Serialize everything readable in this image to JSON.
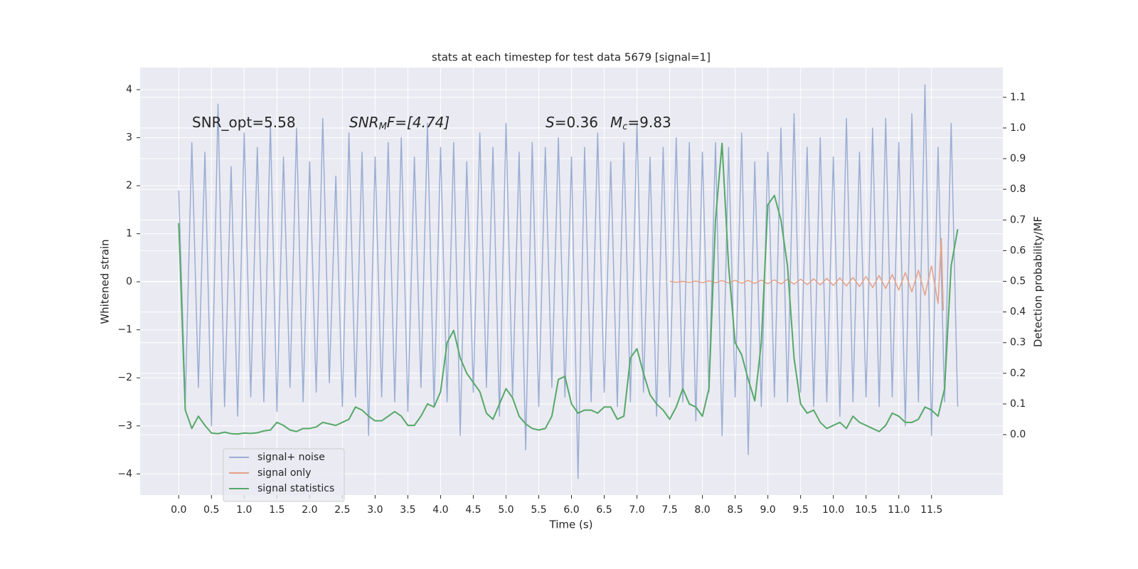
{
  "chart_data": {
    "type": "line",
    "title": "stats at each timestep for test data 5679 [signal=1]",
    "xlabel": "Time (s)",
    "ylabel": "Whitened strain",
    "y2label": "Detection probability/MF",
    "annotations": [
      [
        "SNR_opt=5.58"
      ],
      [
        "SNR",
        "M",
        "F=[4.74]"
      ],
      [
        "S",
        "=0.36"
      ],
      [
        "M",
        "c",
        "=9.83"
      ]
    ],
    "xlim": [
      -0.59,
      12.59
    ],
    "xticks": [
      {
        "value": 0,
        "label": "0.0"
      },
      0.5,
      {
        "value": 1,
        "label": "1.0"
      },
      1.5,
      {
        "value": 2,
        "label": "2.0"
      },
      2.5,
      {
        "value": 3,
        "label": "3.0"
      },
      3.5,
      {
        "value": 4,
        "label": "4.0"
      },
      4.5,
      {
        "value": 5,
        "label": "5.0"
      },
      5.5,
      {
        "value": 6,
        "label": "6.0"
      },
      6.5,
      {
        "value": 7,
        "label": "7.0"
      },
      7.5,
      {
        "value": 8,
        "label": "8.0"
      },
      8.5,
      {
        "value": 9,
        "label": "9.0"
      },
      9.5,
      {
        "value": 10,
        "label": "10.0"
      },
      10.5,
      {
        "value": 11,
        "label": "11.0"
      },
      11.5
    ],
    "ylim": [
      -4.44,
      4.46
    ],
    "yticks": [
      {
        "value": -4,
        "label": "−4"
      },
      {
        "value": -3,
        "label": "−3"
      },
      {
        "value": -2,
        "label": "−2"
      },
      {
        "value": -1,
        "label": "−1"
      },
      0,
      1,
      2,
      3,
      4
    ],
    "y2lim": [
      -0.197,
      1.197
    ],
    "y2ticks": [
      {
        "value": 0,
        "label": "0.0"
      },
      0.1,
      0.2,
      0.3,
      0.4,
      0.5,
      0.6,
      0.7,
      0.8,
      0.9,
      {
        "value": 1,
        "label": "1.0"
      },
      1.1
    ],
    "grid": true,
    "legend": "lower left",
    "x": [
      0.0,
      0.1,
      0.2,
      0.3,
      0.4,
      0.5,
      0.6,
      0.7,
      0.8,
      0.9,
      1.0,
      1.1,
      1.2,
      1.3,
      1.4,
      1.5,
      1.6,
      1.7,
      1.8,
      1.9,
      2.0,
      2.1,
      2.2,
      2.3,
      2.4,
      2.5,
      2.6,
      2.7,
      2.8,
      2.9,
      3.0,
      3.1,
      3.2,
      3.3,
      3.4,
      3.5,
      3.6,
      3.7,
      3.8,
      3.9,
      4.0,
      4.1,
      4.2,
      4.3,
      4.4,
      4.5,
      4.6,
      4.7,
      4.8,
      4.9,
      5.0,
      5.1,
      5.2,
      5.3,
      5.4,
      5.5,
      5.6,
      5.7,
      5.8,
      5.9,
      6.0,
      6.1,
      6.2,
      6.3,
      6.4,
      6.5,
      6.6,
      6.7,
      6.8,
      6.9,
      7.0,
      7.1,
      7.2,
      7.3,
      7.4,
      7.5,
      7.6,
      7.7,
      7.8,
      7.9,
      8.0,
      8.1,
      8.2,
      8.3,
      8.4,
      8.5,
      8.6,
      8.7,
      8.8,
      8.9,
      9.0,
      9.1,
      9.2,
      9.3,
      9.4,
      9.5,
      9.6,
      9.7,
      9.8,
      9.9,
      10.0,
      10.1,
      10.2,
      10.3,
      10.4,
      10.5,
      10.6,
      10.7,
      10.8,
      10.9,
      11.0,
      11.1,
      11.2,
      11.3,
      11.4,
      11.5,
      11.6,
      11.7,
      11.8,
      11.9
    ],
    "series": [
      {
        "name": "signal+ noise",
        "color": "#9aaed3",
        "values": [
          1.9,
          -2.5,
          2.9,
          -2.2,
          2.7,
          -3.0,
          3.7,
          -2.6,
          2.4,
          -2.8,
          3.1,
          -2.4,
          2.8,
          -2.5,
          3.3,
          -2.7,
          2.6,
          -2.2,
          3.2,
          -2.5,
          2.5,
          -2.3,
          3.4,
          -2.1,
          2.2,
          -2.6,
          3.1,
          -2.4,
          2.7,
          -3.2,
          2.6,
          -2.4,
          2.9,
          -2.5,
          3.0,
          -2.7,
          2.6,
          -2.2,
          3.3,
          -2.6,
          2.8,
          -2.5,
          2.9,
          -3.2,
          2.5,
          -2.3,
          3.1,
          -2.2,
          2.8,
          -2.8,
          3.3,
          -2.4,
          2.7,
          -3.5,
          2.9,
          -2.6,
          2.8,
          -2.2,
          3.0,
          -2.4,
          2.6,
          -4.1,
          2.8,
          -2.5,
          3.1,
          -2.3,
          2.5,
          -2.6,
          2.9,
          -2.5,
          3.3,
          -2.3,
          2.6,
          -2.8,
          2.8,
          -2.4,
          3.0,
          -2.5,
          2.9,
          -2.9,
          2.7,
          -2.3,
          2.9,
          -3.2,
          2.8,
          -2.4,
          3.1,
          -3.6,
          2.5,
          -2.6,
          2.7,
          -2.4,
          3.2,
          -2.5,
          3.5,
          -2.3,
          2.8,
          -2.6,
          3.0,
          -2.5,
          2.6,
          -2.8,
          3.4,
          -2.5,
          2.7,
          -2.4,
          3.2,
          -2.6,
          3.4,
          -2.4,
          2.9,
          -3.0,
          3.5,
          -2.5,
          4.1,
          -3.2,
          2.8,
          -2.5,
          3.3,
          -2.6
        ]
      },
      {
        "name": "signal only",
        "color": "#e5a085",
        "x": [
          7.5,
          7.6,
          7.7,
          7.8,
          7.9,
          8.0,
          8.1,
          8.2,
          8.3,
          8.4,
          8.5,
          8.6,
          8.7,
          8.8,
          8.9,
          9.0,
          9.1,
          9.2,
          9.3,
          9.4,
          9.5,
          9.6,
          9.7,
          9.8,
          9.9,
          10.0,
          10.1,
          10.2,
          10.3,
          10.4,
          10.5,
          10.6,
          10.7,
          10.8,
          10.9,
          11.0,
          11.1,
          11.2,
          11.3,
          11.4,
          11.5,
          11.6,
          11.65,
          11.68
        ],
        "values": [
          0.01,
          -0.01,
          0.01,
          -0.015,
          0.015,
          -0.02,
          0.02,
          -0.02,
          0.025,
          -0.025,
          0.03,
          -0.03,
          0.03,
          -0.035,
          0.035,
          -0.04,
          0.04,
          -0.045,
          0.05,
          -0.05,
          0.055,
          -0.06,
          0.06,
          -0.065,
          0.07,
          -0.075,
          0.08,
          -0.085,
          0.09,
          -0.1,
          0.11,
          -0.12,
          0.13,
          -0.14,
          0.15,
          -0.17,
          0.19,
          -0.21,
          0.24,
          -0.28,
          0.33,
          -0.45,
          0.9,
          -0.6
        ]
      },
      {
        "name": "signal statistics",
        "color": "#55a868",
        "axis": "y2",
        "values": [
          0.69,
          0.08,
          0.02,
          0.06,
          0.03,
          0.005,
          0.003,
          0.008,
          0.003,
          0.002,
          0.005,
          0.004,
          0.006,
          0.012,
          0.015,
          0.04,
          0.03,
          0.015,
          0.01,
          0.02,
          0.02,
          0.025,
          0.04,
          0.035,
          0.03,
          0.04,
          0.05,
          0.09,
          0.08,
          0.06,
          0.045,
          0.045,
          0.06,
          0.075,
          0.06,
          0.03,
          0.03,
          0.06,
          0.1,
          0.09,
          0.14,
          0.3,
          0.34,
          0.25,
          0.2,
          0.17,
          0.14,
          0.07,
          0.05,
          0.1,
          0.15,
          0.12,
          0.06,
          0.035,
          0.02,
          0.015,
          0.02,
          0.06,
          0.18,
          0.19,
          0.1,
          0.07,
          0.08,
          0.08,
          0.07,
          0.09,
          0.09,
          0.05,
          0.06,
          0.25,
          0.28,
          0.2,
          0.13,
          0.1,
          0.08,
          0.05,
          0.09,
          0.15,
          0.1,
          0.09,
          0.06,
          0.15,
          0.7,
          0.95,
          0.55,
          0.3,
          0.26,
          0.18,
          0.11,
          0.3,
          0.75,
          0.78,
          0.7,
          0.55,
          0.25,
          0.1,
          0.07,
          0.08,
          0.04,
          0.02,
          0.03,
          0.04,
          0.02,
          0.06,
          0.04,
          0.03,
          0.02,
          0.01,
          0.03,
          0.07,
          0.06,
          0.04,
          0.04,
          0.05,
          0.09,
          0.08,
          0.06,
          0.15,
          0.55,
          0.67
        ]
      }
    ]
  }
}
